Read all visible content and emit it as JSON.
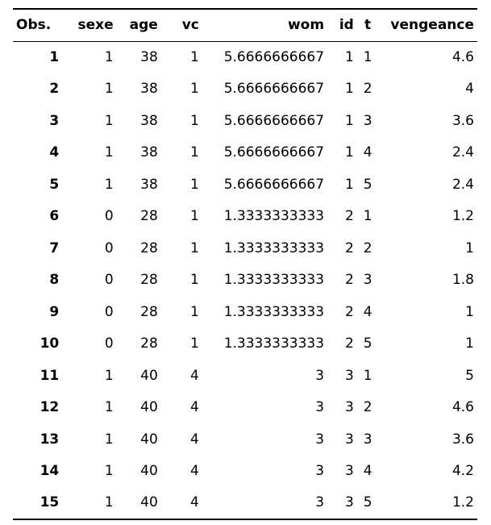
{
  "table": {
    "columns": [
      "Obs.",
      "sexe",
      "age",
      "vc",
      "wom",
      "id",
      "t",
      "vengeance"
    ],
    "rows": [
      [
        "1",
        "1",
        "38",
        "1",
        "5.6666666667",
        "1",
        "1",
        "4.6"
      ],
      [
        "2",
        "1",
        "38",
        "1",
        "5.6666666667",
        "1",
        "2",
        "4"
      ],
      [
        "3",
        "1",
        "38",
        "1",
        "5.6666666667",
        "1",
        "3",
        "3.6"
      ],
      [
        "4",
        "1",
        "38",
        "1",
        "5.6666666667",
        "1",
        "4",
        "2.4"
      ],
      [
        "5",
        "1",
        "38",
        "1",
        "5.6666666667",
        "1",
        "5",
        "2.4"
      ],
      [
        "6",
        "0",
        "28",
        "1",
        "1.3333333333",
        "2",
        "1",
        "1.2"
      ],
      [
        "7",
        "0",
        "28",
        "1",
        "1.3333333333",
        "2",
        "2",
        "1"
      ],
      [
        "8",
        "0",
        "28",
        "1",
        "1.3333333333",
        "2",
        "3",
        "1.8"
      ],
      [
        "9",
        "0",
        "28",
        "1",
        "1.3333333333",
        "2",
        "4",
        "1"
      ],
      [
        "10",
        "0",
        "28",
        "1",
        "1.3333333333",
        "2",
        "5",
        "1"
      ],
      [
        "11",
        "1",
        "40",
        "4",
        "3",
        "3",
        "1",
        "5"
      ],
      [
        "12",
        "1",
        "40",
        "4",
        "3",
        "3",
        "2",
        "4.6"
      ],
      [
        "13",
        "1",
        "40",
        "4",
        "3",
        "3",
        "3",
        "3.6"
      ],
      [
        "14",
        "1",
        "40",
        "4",
        "3",
        "3",
        "4",
        "4.2"
      ],
      [
        "15",
        "1",
        "40",
        "4",
        "3",
        "3",
        "5",
        "1.2"
      ]
    ]
  }
}
